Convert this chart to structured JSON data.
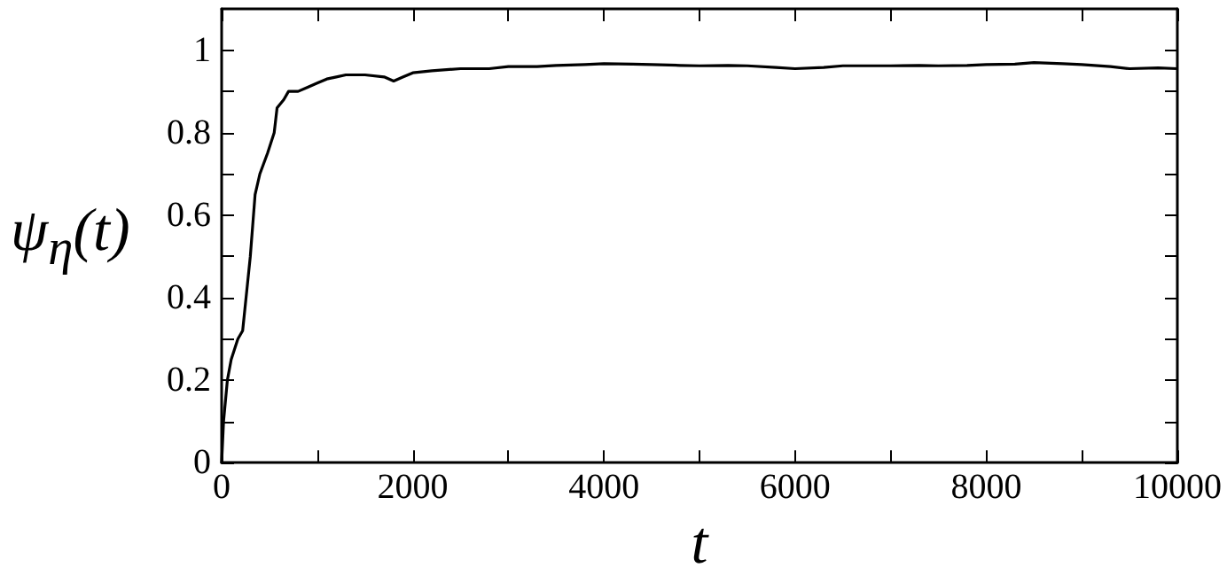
{
  "chart_data": {
    "type": "line",
    "xlabel": "t",
    "ylabel": "ψ$_{η}$(t)",
    "x": [
      0,
      20,
      60,
      100,
      170,
      220,
      300,
      350,
      400,
      480,
      550,
      580,
      650,
      700,
      800,
      900,
      1000,
      1100,
      1200,
      1300,
      1500,
      1700,
      1800,
      1900,
      2000,
      2200,
      2500,
      2800,
      3000,
      3300,
      3500,
      3800,
      4000,
      4300,
      4500,
      4800,
      5000,
      5300,
      5500,
      5800,
      6000,
      6300,
      6500,
      6800,
      7000,
      7300,
      7500,
      7800,
      8000,
      8300,
      8500,
      8800,
      9000,
      9300,
      9500,
      9800,
      10000
    ],
    "series": [
      {
        "color": "#000000",
        "values": [
          0,
          0.1,
          0.2,
          0.25,
          0.3,
          0.32,
          0.5,
          0.65,
          0.7,
          0.75,
          0.8,
          0.86,
          0.88,
          0.9,
          0.9,
          0.91,
          0.92,
          0.93,
          0.935,
          0.94,
          0.94,
          0.935,
          0.925,
          0.935,
          0.945,
          0.95,
          0.955,
          0.955,
          0.96,
          0.96,
          0.963,
          0.965,
          0.967,
          0.966,
          0.965,
          0.963,
          0.962,
          0.963,
          0.962,
          0.958,
          0.955,
          0.958,
          0.962,
          0.962,
          0.962,
          0.963,
          0.962,
          0.963,
          0.965,
          0.966,
          0.97,
          0.967,
          0.965,
          0.96,
          0.955,
          0.957,
          0.955
        ]
      }
    ],
    "xlim": [
      0,
      10000
    ],
    "xticks": [
      0,
      {
        "value": 1000,
        "label": null
      },
      2000,
      {
        "value": 3000,
        "label": null
      },
      4000,
      {
        "value": 5000,
        "label": null
      },
      6000,
      {
        "value": 7000,
        "label": null
      },
      8000,
      {
        "value": 9000,
        "label": null
      },
      10000
    ],
    "ylim": [
      0,
      1.1
    ],
    "yticks": [
      0,
      {
        "value": 0.1,
        "label": null
      },
      0.2,
      {
        "value": 0.3,
        "label": null
      },
      0.4,
      {
        "value": 0.5,
        "label": null
      },
      0.6,
      {
        "value": 0.7,
        "label": null
      },
      0.8,
      {
        "value": 0.9,
        "label": null
      },
      1
    ],
    "grid": false,
    "marker": "none",
    "line_style": "solid"
  }
}
